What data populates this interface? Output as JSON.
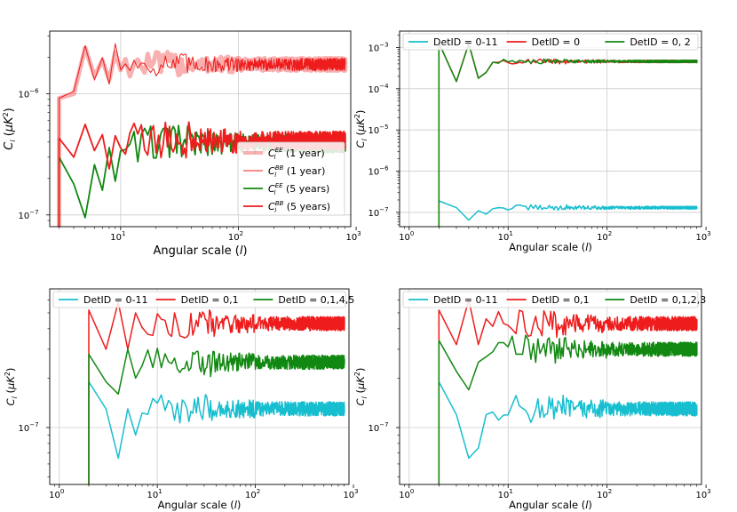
{
  "colors": {
    "red": "#ee1c1c",
    "green": "#118811",
    "cyan": "#17becf",
    "grid": "#cccccc"
  },
  "chart_data": [
    {
      "id": "p1",
      "type": "line",
      "xscale": "log",
      "yscale": "log",
      "xlim": [
        2.5,
        900
      ],
      "ylim": [
        8e-08,
        3.3e-06
      ],
      "xticks": [
        {
          "v": 10,
          "t": "10"
        },
        {
          "v": 100,
          "t": "10"
        },
        {
          "v": 1000,
          "t": "10"
        }
      ],
      "xticks_exp": [
        "1",
        "2",
        "3"
      ],
      "yticks": [
        {
          "v": 1e-07,
          "t": "10"
        },
        {
          "v": 1e-06,
          "t": "10"
        }
      ],
      "yticks_exp": [
        "−7",
        "−6"
      ],
      "xlabel": "Angular scale (l)",
      "ylabel": "C_l (μK²)",
      "legend": "lower-right",
      "series": [
        {
          "name": "C_l^EE (1 year)",
          "color": "#ee1c1c",
          "width": 5,
          "opacity": 0.35,
          "level": 1.75e-06,
          "spread": 0.12,
          "lowl": [
            {
              "x": 3,
              "y": 9.2e-07
            },
            {
              "x": 4,
              "y": 1e-06
            },
            {
              "x": 5,
              "y": 2.4e-06
            },
            {
              "x": 6,
              "y": 1.4e-06
            },
            {
              "x": 7,
              "y": 1.9e-06
            },
            {
              "x": 8,
              "y": 1.3e-06
            },
            {
              "x": 9,
              "y": 2.2e-06
            }
          ]
        },
        {
          "name": "C_l^BB (1 year)",
          "color": "#ee1c1c",
          "width": 1,
          "opacity": 1,
          "level": 1.75e-06,
          "spread": 0.12,
          "lowl": [
            {
              "x": 3,
              "y": 9.2e-07
            },
            {
              "x": 4,
              "y": 1.05e-06
            },
            {
              "x": 5,
              "y": 2.5e-06
            },
            {
              "x": 6,
              "y": 1.3e-06
            },
            {
              "x": 7,
              "y": 2e-06
            },
            {
              "x": 8,
              "y": 1.2e-06
            },
            {
              "x": 9,
              "y": 2.6e-06
            }
          ]
        },
        {
          "name": "C_l^EE (5 years)",
          "color": "#118811",
          "width": 1.8,
          "opacity": 1,
          "level": 3.9e-07,
          "spread": 0.18,
          "lowl": [
            {
              "x": 3,
              "y": 3e-07
            },
            {
              "x": 4,
              "y": 1.8e-07
            },
            {
              "x": 5,
              "y": 9.5e-08
            },
            {
              "x": 6,
              "y": 2.6e-07
            },
            {
              "x": 7,
              "y": 1.6e-07
            },
            {
              "x": 8,
              "y": 3.6e-07
            },
            {
              "x": 9,
              "y": 1.9e-07
            }
          ]
        },
        {
          "name": "C_l^BB (5 years)",
          "color": "#ee1c1c",
          "width": 1.8,
          "opacity": 1,
          "level": 4.1e-07,
          "spread": 0.18,
          "lowl": [
            {
              "x": 3,
              "y": 4.3e-07
            },
            {
              "x": 4,
              "y": 3e-07
            },
            {
              "x": 5,
              "y": 5.6e-07
            },
            {
              "x": 6,
              "y": 3.4e-07
            },
            {
              "x": 7,
              "y": 4.6e-07
            },
            {
              "x": 8,
              "y": 2.4e-07
            },
            {
              "x": 9,
              "y": 4.5e-07
            }
          ]
        }
      ]
    },
    {
      "id": "p2",
      "type": "line",
      "xscale": "log",
      "yscale": "log",
      "xlim": [
        0.8,
        900
      ],
      "ylim": [
        4.5e-08,
        0.0025
      ],
      "xticks": [
        {
          "v": 1,
          "t": "10"
        },
        {
          "v": 10,
          "t": "10"
        },
        {
          "v": 100,
          "t": "10"
        },
        {
          "v": 1000,
          "t": "10"
        }
      ],
      "xticks_exp": [
        "0",
        "1",
        "2",
        "3"
      ],
      "yticks": [
        {
          "v": 1e-07,
          "t": "10"
        },
        {
          "v": 1e-06,
          "t": "10"
        },
        {
          "v": 1e-05,
          "t": "10"
        },
        {
          "v": 0.0001,
          "t": "10"
        },
        {
          "v": 0.001,
          "t": "10"
        }
      ],
      "yticks_exp": [
        "−7",
        "−6",
        "−5",
        "−4",
        "−3"
      ],
      "xlabel": "Angular scale (l)",
      "ylabel": "C_l (μK²)",
      "legend": "top",
      "series": [
        {
          "name": "DetID = 0-11",
          "color": "#17becf",
          "width": 1.5,
          "opacity": 1,
          "level": 1.3e-07,
          "spread": 0.08,
          "lowl": [
            {
              "x": 2,
              "y": 1.9e-07
            },
            {
              "x": 3,
              "y": 1.3e-07
            },
            {
              "x": 4,
              "y": 6.5e-08
            },
            {
              "x": 5,
              "y": 1.1e-07
            },
            {
              "x": 6,
              "y": 9e-08
            }
          ]
        },
        {
          "name": "DetID = 0",
          "color": "#ee1c1c",
          "width": 1.5,
          "opacity": 1,
          "level": 0.00046,
          "spread": 0.07,
          "lowl": [
            {
              "x": 2,
              "y": 0.0013
            },
            {
              "x": 3,
              "y": 0.00015
            },
            {
              "x": 4,
              "y": 0.00125
            },
            {
              "x": 5,
              "y": 0.00018
            },
            {
              "x": 6,
              "y": 0.00025
            }
          ]
        },
        {
          "name": "DetID = 0, 2",
          "color": "#118811",
          "width": 1.5,
          "opacity": 1,
          "level": 0.00046,
          "spread": 0.07,
          "lowl": [
            {
              "x": 2,
              "y": 0.0013
            },
            {
              "x": 3,
              "y": 0.00015
            },
            {
              "x": 4,
              "y": 0.00125
            },
            {
              "x": 5,
              "y": 0.00018
            },
            {
              "x": 6,
              "y": 0.00025
            }
          ]
        }
      ]
    },
    {
      "id": "p3",
      "type": "line",
      "xscale": "log",
      "yscale": "log",
      "xlim": [
        0.8,
        900
      ],
      "ylim": [
        4.5e-08,
        7e-07
      ],
      "xticks": [
        {
          "v": 1,
          "t": "10"
        },
        {
          "v": 10,
          "t": "10"
        },
        {
          "v": 100,
          "t": "10"
        },
        {
          "v": 1000,
          "t": "10"
        }
      ],
      "xticks_exp": [
        "0",
        "1",
        "2",
        "3"
      ],
      "yticks": [
        {
          "v": 1e-07,
          "t": "10"
        }
      ],
      "yticks_exp": [
        "−7"
      ],
      "xlabel": "Angular scale (l)",
      "ylabel": "C_l (μK²)",
      "legend": "top",
      "series": [
        {
          "name": "DetID = 0-11",
          "color": "#17becf",
          "width": 1.5,
          "opacity": 1,
          "level": 1.3e-07,
          "spread": 0.1,
          "lowl": [
            {
              "x": 2,
              "y": 1.9e-07
            },
            {
              "x": 3,
              "y": 1.3e-07
            },
            {
              "x": 4,
              "y": 6.5e-08
            },
            {
              "x": 5,
              "y": 1.3e-07
            },
            {
              "x": 6,
              "y": 9e-08
            }
          ]
        },
        {
          "name": "DetID = 0,1",
          "color": "#ee1c1c",
          "width": 1.5,
          "opacity": 1,
          "level": 4.3e-07,
          "spread": 0.1,
          "lowl": [
            {
              "x": 2,
              "y": 5.2e-07
            },
            {
              "x": 3,
              "y": 3e-07
            },
            {
              "x": 4,
              "y": 5.8e-07
            },
            {
              "x": 5,
              "y": 3e-07
            },
            {
              "x": 6,
              "y": 5e-07
            }
          ]
        },
        {
          "name": "DetID = 0,1,4,5",
          "color": "#118811",
          "width": 1.5,
          "opacity": 1,
          "level": 2.5e-07,
          "spread": 0.1,
          "lowl": [
            {
              "x": 2,
              "y": 2.8e-07
            },
            {
              "x": 3,
              "y": 1.9e-07
            },
            {
              "x": 4,
              "y": 1.6e-07
            },
            {
              "x": 5,
              "y": 3e-07
            },
            {
              "x": 6,
              "y": 2e-07
            }
          ]
        }
      ]
    },
    {
      "id": "p4",
      "type": "line",
      "xscale": "log",
      "yscale": "log",
      "xlim": [
        0.8,
        900
      ],
      "ylim": [
        4.5e-08,
        7e-07
      ],
      "xticks": [
        {
          "v": 1,
          "t": "10"
        },
        {
          "v": 10,
          "t": "10"
        },
        {
          "v": 100,
          "t": "10"
        },
        {
          "v": 1000,
          "t": "10"
        }
      ],
      "xticks_exp": [
        "0",
        "1",
        "2",
        "3"
      ],
      "yticks": [
        {
          "v": 1e-07,
          "t": "10"
        }
      ],
      "yticks_exp": [
        "−7"
      ],
      "xlabel": "Angular scale (l)",
      "ylabel": "C_l (μK²)",
      "legend": "top",
      "series": [
        {
          "name": "DetID = 0-11",
          "color": "#17becf",
          "width": 1.5,
          "opacity": 1,
          "level": 1.3e-07,
          "spread": 0.1,
          "lowl": [
            {
              "x": 2,
              "y": 1.9e-07
            },
            {
              "x": 3,
              "y": 1.2e-07
            },
            {
              "x": 4,
              "y": 6.5e-08
            },
            {
              "x": 5,
              "y": 7.5e-08
            },
            {
              "x": 6,
              "y": 1.2e-07
            }
          ]
        },
        {
          "name": "DetID = 0,1",
          "color": "#ee1c1c",
          "width": 1.5,
          "opacity": 1,
          "level": 4.3e-07,
          "spread": 0.1,
          "lowl": [
            {
              "x": 2,
              "y": 5.2e-07
            },
            {
              "x": 3,
              "y": 3.2e-07
            },
            {
              "x": 4,
              "y": 6e-07
            },
            {
              "x": 5,
              "y": 3.2e-07
            },
            {
              "x": 6,
              "y": 4.6e-07
            }
          ]
        },
        {
          "name": "DetID = 0,1,2,3",
          "color": "#118811",
          "width": 1.5,
          "opacity": 1,
          "level": 3e-07,
          "spread": 0.1,
          "lowl": [
            {
              "x": 2,
              "y": 3.4e-07
            },
            {
              "x": 3,
              "y": 2.2e-07
            },
            {
              "x": 4,
              "y": 1.7e-07
            },
            {
              "x": 5,
              "y": 2.5e-07
            },
            {
              "x": 6,
              "y": 2.7e-07
            }
          ]
        }
      ]
    }
  ]
}
